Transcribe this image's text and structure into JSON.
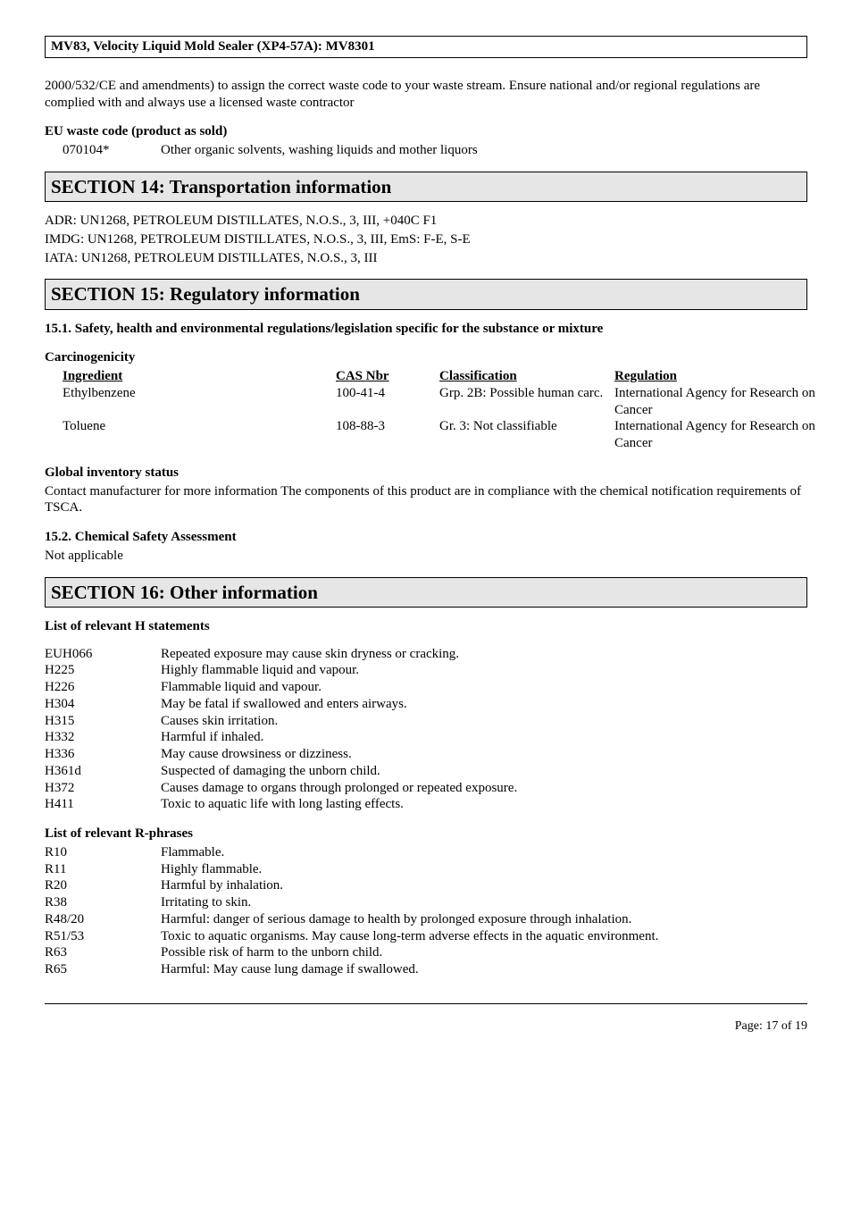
{
  "title_bar": "MV83, Velocity Liquid Mold Sealer (XP4-57A): MV8301",
  "intro_para": "2000/532/CE and amendments) to assign the correct waste code to your waste stream. Ensure national and/or regional regulations are complied with and always use a licensed waste contractor",
  "eu_waste": {
    "heading": "EU waste code (product as sold)",
    "code": "070104*",
    "desc": "Other organic solvents, washing liquids and mother liquors"
  },
  "section14": {
    "title": "SECTION 14: Transportation information",
    "lines": [
      "ADR: UN1268, PETROLEUM DISTILLATES, N.O.S., 3, III, +040C  F1",
      "IMDG: UN1268, PETROLEUM DISTILLATES, N.O.S., 3, III, EmS: F-E, S-E",
      "IATA: UN1268, PETROLEUM DISTILLATES, N.O.S., 3, III"
    ]
  },
  "section15": {
    "title": "SECTION 15: Regulatory information",
    "sub1": "15.1. Safety, health and environmental regulations/legislation specific for the substance or mixture",
    "carc_heading": "Carcinogenicity",
    "cols": {
      "c1": "Ingredient",
      "c2": "CAS Nbr",
      "c3": "Classification",
      "c4": "Regulation"
    },
    "rows": [
      {
        "ing": "Ethylbenzene",
        "cas": "100-41-4",
        "cls": "Grp. 2B: Possible human carc.",
        "reg": "International Agency for Research on Cancer"
      },
      {
        "ing": "Toluene",
        "cas": "108-88-3",
        "cls": "Gr. 3: Not classifiable",
        "reg": "International Agency for Research on Cancer"
      }
    ],
    "global_heading": "Global inventory status",
    "global_text": "Contact manufacturer for more information  The components of this product are in compliance with the chemical notification requirements of TSCA.",
    "sub2": "15.2. Chemical Safety Assessment",
    "sub2_text": "Not applicable"
  },
  "section16": {
    "title": "SECTION 16: Other information",
    "h_heading": "List of relevant H statements",
    "h_list": [
      [
        "EUH066",
        "Repeated exposure may cause skin dryness or cracking."
      ],
      [
        "H225",
        "Highly flammable liquid and vapour."
      ],
      [
        "H226",
        "Flammable liquid and vapour."
      ],
      [
        "H304",
        "May be fatal if swallowed and enters airways."
      ],
      [
        "H315",
        "Causes skin irritation."
      ],
      [
        "H332",
        "Harmful if inhaled."
      ],
      [
        "H336",
        "May cause drowsiness or dizziness."
      ],
      [
        "H361d",
        "Suspected of damaging the unborn child."
      ],
      [
        "H372",
        "Causes damage to organs through prolonged or repeated exposure."
      ],
      [
        "H411",
        "Toxic to aquatic life with long lasting effects."
      ]
    ],
    "r_heading": "List of relevant R-phrases",
    "r_list": [
      [
        "R10",
        "Flammable."
      ],
      [
        "R11",
        "Highly flammable."
      ],
      [
        "R20",
        "Harmful by inhalation."
      ],
      [
        "R38",
        "Irritating to skin."
      ],
      [
        "R48/20",
        "Harmful:  danger of serious damage to health by prolonged exposure through inhalation."
      ],
      [
        "R51/53",
        "Toxic to aquatic organisms. May cause long-term adverse effects in the aquatic environment."
      ],
      [
        "R63",
        "Possible risk of harm to the unborn child."
      ],
      [
        "R65",
        "Harmful: May cause lung damage if swallowed."
      ]
    ]
  },
  "page_num": "Page: 17 of  19"
}
